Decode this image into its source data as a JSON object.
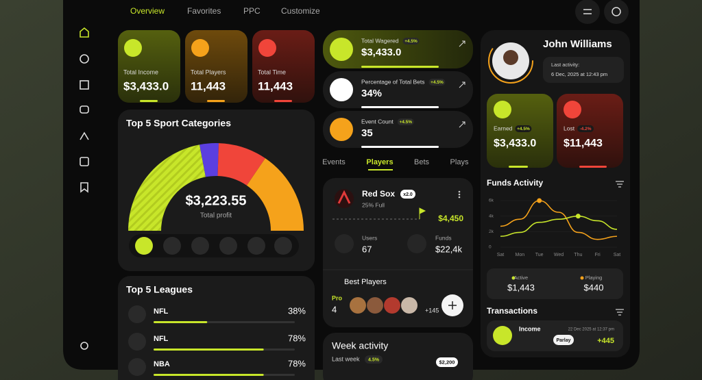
{
  "nav": [
    "Overview",
    "Favorites",
    "PPC",
    "Customize"
  ],
  "stats": [
    {
      "label": "Total Income",
      "value": "$3,433.0"
    },
    {
      "label": "Total Players",
      "value": "11,443"
    },
    {
      "label": "Total Time",
      "value": "11,443"
    }
  ],
  "metrics": [
    {
      "label": "Total Wagered",
      "change": "+4.5%",
      "value": "$3,433.0"
    },
    {
      "label": "Percentage of Total Bets",
      "change": "+4.5%",
      "value": "34%"
    },
    {
      "label": "Event Count",
      "change": "+4.5%",
      "value": "35"
    }
  ],
  "profile": {
    "name": "John Williams",
    "activity_label": "Last activity:",
    "activity": "6 Dec, 2025 at 12:43 pm"
  },
  "balance": [
    {
      "label": "Earned",
      "change": "+4.5%",
      "value": "$3,433.0"
    },
    {
      "label": "Lost",
      "change": "-4.2%",
      "value": "$11,443"
    }
  ],
  "sport_categories": {
    "title": "Top 5 Sport Categories",
    "amount": "$3,223.55",
    "caption": "Total profit",
    "segments": [
      {
        "color": "#c8e62a",
        "value": 44
      },
      {
        "color": "#5b3fe0",
        "value": 7
      },
      {
        "color": "#f0453a",
        "value": 18
      },
      {
        "color": "#f5a21b",
        "value": 31
      }
    ]
  },
  "leagues": {
    "title": "Top 5 Leagues",
    "names": [
      "NFL",
      "NFL",
      "NBA"
    ],
    "values": [
      38,
      78,
      78
    ],
    "value_labels": [
      "38%",
      "78%",
      "78%"
    ],
    "xlim": [
      0,
      100
    ],
    "color": "#c8e62a"
  },
  "tabs": [
    "Events",
    "Players",
    "Bets",
    "Plays"
  ],
  "team": {
    "name": "Red Sox",
    "capacity": "25% Full",
    "multiplier": "x2.0",
    "amount": "$4,450",
    "users_label": "Users",
    "users": "67",
    "funds_label": "Funds",
    "funds": "$22,4k"
  },
  "best_players": {
    "title": "Best Players",
    "tier": "Pro",
    "count": "4",
    "extra": "+145"
  },
  "week_activity": {
    "title": "Week activity",
    "period": "Last week",
    "change": "4.5%",
    "amount": "$2,200"
  },
  "funds_activity": {
    "title": "Funds Activity",
    "categories": [
      "Sat",
      "Mon",
      "Tue",
      "Wed",
      "Thu",
      "Fri",
      "Sat"
    ],
    "series": [
      {
        "color": "#f5a21b",
        "values": [
          2.7,
          3.6,
          6.0,
          4.5,
          1.9,
          1.0,
          1.4
        ]
      },
      {
        "color": "#c8e62a",
        "values": [
          1.4,
          1.9,
          3.2,
          3.6,
          4.0,
          3.4,
          2.3
        ]
      }
    ],
    "ylim": [
      0,
      6
    ],
    "yticks": [
      0,
      {
        "value": 2,
        "label": "2k"
      },
      {
        "value": 4,
        "label": "4k"
      },
      {
        "value": 6,
        "label": "6k"
      }
    ]
  },
  "summary": [
    {
      "label": "Active",
      "value": "$1,443"
    },
    {
      "label": "Playing",
      "value": "$440"
    }
  ],
  "transactions": {
    "title": "Transactions",
    "items": [
      {
        "name": "Income",
        "date": "22 Dec 2025 at 12:37 pm",
        "tag": "Parlay",
        "amount": "+445"
      }
    ]
  }
}
